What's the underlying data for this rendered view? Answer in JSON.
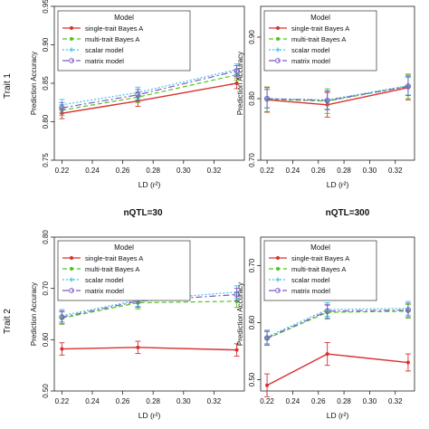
{
  "row_labels": [
    "Trait 1",
    "Trait 2"
  ],
  "section_titles": [
    "nQTL=30",
    "nQTL=300"
  ],
  "legend": {
    "title": "Model",
    "entries": [
      "single-trait Bayes A",
      "multi-trait Bayes A",
      "scalar model",
      "matrix model"
    ]
  },
  "series_colors": [
    "#d93030",
    "#52c41a",
    "#3fc3ea",
    "#7b5cc4"
  ],
  "chart_data": [
    {
      "type": "line",
      "panel": "top-left",
      "row_label": "Trait 1",
      "xlabel": "LD (r²)",
      "ylabel": "Prediction Accuracy",
      "x": [
        0.22,
        0.27,
        0.335
      ],
      "xlim": [
        0.215,
        0.34
      ],
      "ylim": [
        0.75,
        0.95
      ],
      "xticks": [
        "0.22",
        "0.24",
        "0.26",
        "0.28",
        "0.30",
        "0.32"
      ],
      "yticks": [
        "0.75",
        "0.80",
        "0.85",
        "0.90",
        "0.95"
      ],
      "series": [
        {
          "name": "single-trait Bayes A",
          "values": [
            0.811,
            0.827,
            0.85
          ],
          "errors": [
            0.007,
            0.007,
            0.007
          ]
        },
        {
          "name": "multi-trait Bayes A",
          "values": [
            0.815,
            0.832,
            0.861
          ],
          "errors": [
            0.007,
            0.007,
            0.007
          ]
        },
        {
          "name": "scalar model",
          "values": [
            0.822,
            0.838,
            0.868
          ],
          "errors": [
            0.007,
            0.007,
            0.007
          ]
        },
        {
          "name": "matrix model",
          "values": [
            0.818,
            0.835,
            0.866
          ],
          "errors": [
            0.007,
            0.007,
            0.007
          ]
        }
      ]
    },
    {
      "type": "line",
      "panel": "top-right",
      "xlabel": "LD (r²)",
      "ylabel": "Prediction Accuracy",
      "x": [
        0.22,
        0.267,
        0.33
      ],
      "xlim": [
        0.215,
        0.335
      ],
      "ylim": [
        0.7,
        0.95
      ],
      "xticks": [
        "0.22",
        "0.24",
        "0.26",
        "0.28",
        "0.30",
        "0.32"
      ],
      "yticks": [
        "0.70",
        "0.80",
        "0.90"
      ],
      "series": [
        {
          "name": "single-trait Bayes A",
          "values": [
            0.798,
            0.79,
            0.818
          ],
          "errors": [
            0.02,
            0.02,
            0.02
          ]
        },
        {
          "name": "multi-trait Bayes A",
          "values": [
            0.799,
            0.796,
            0.82
          ],
          "errors": [
            0.02,
            0.02,
            0.02
          ]
        },
        {
          "name": "scalar model",
          "values": [
            0.8,
            0.798,
            0.821
          ],
          "errors": [
            0.015,
            0.015,
            0.015
          ]
        },
        {
          "name": "matrix model",
          "values": [
            0.8,
            0.797,
            0.82
          ],
          "errors": [
            0.015,
            0.015,
            0.015
          ]
        }
      ]
    },
    {
      "type": "line",
      "panel": "bottom-left",
      "row_label": "Trait 2",
      "xlabel": "LD (r²)",
      "ylabel": "Prediction Accuracy",
      "x": [
        0.22,
        0.27,
        0.335
      ],
      "xlim": [
        0.215,
        0.34
      ],
      "ylim": [
        0.5,
        0.8
      ],
      "xticks": [
        "0.22",
        "0.24",
        "0.26",
        "0.28",
        "0.30",
        "0.32"
      ],
      "yticks": [
        "0.50",
        "0.60",
        "0.70",
        "0.80"
      ],
      "series": [
        {
          "name": "single-trait Bayes A",
          "values": [
            0.582,
            0.585,
            0.58
          ],
          "errors": [
            0.012,
            0.012,
            0.012
          ]
        },
        {
          "name": "multi-trait Bayes A",
          "values": [
            0.642,
            0.672,
            0.675
          ],
          "errors": [
            0.012,
            0.012,
            0.012
          ]
        },
        {
          "name": "scalar model",
          "values": [
            0.647,
            0.677,
            0.693
          ],
          "errors": [
            0.012,
            0.012,
            0.012
          ]
        },
        {
          "name": "matrix model",
          "values": [
            0.644,
            0.675,
            0.688
          ],
          "errors": [
            0.012,
            0.012,
            0.012
          ]
        }
      ]
    },
    {
      "type": "line",
      "panel": "bottom-right",
      "xlabel": "LD (r²)",
      "ylabel": "Prediction Accuracy",
      "x": [
        0.22,
        0.267,
        0.33
      ],
      "xlim": [
        0.215,
        0.335
      ],
      "ylim": [
        0.48,
        0.75
      ],
      "xticks": [
        "0.22",
        "0.24",
        "0.26",
        "0.28",
        "0.30",
        "0.32"
      ],
      "yticks": [
        "0.50",
        "0.60",
        "0.70"
      ],
      "series": [
        {
          "name": "single-trait Bayes A",
          "values": [
            0.49,
            0.545,
            0.53
          ],
          "errors": [
            0.02,
            0.02,
            0.015
          ]
        },
        {
          "name": "multi-trait Bayes A",
          "values": [
            0.572,
            0.618,
            0.62
          ],
          "errors": [
            0.012,
            0.012,
            0.012
          ]
        },
        {
          "name": "scalar model",
          "values": [
            0.575,
            0.623,
            0.625
          ],
          "errors": [
            0.012,
            0.012,
            0.012
          ]
        },
        {
          "name": "matrix model",
          "values": [
            0.573,
            0.62,
            0.622
          ],
          "errors": [
            0.012,
            0.012,
            0.012
          ]
        }
      ]
    }
  ]
}
